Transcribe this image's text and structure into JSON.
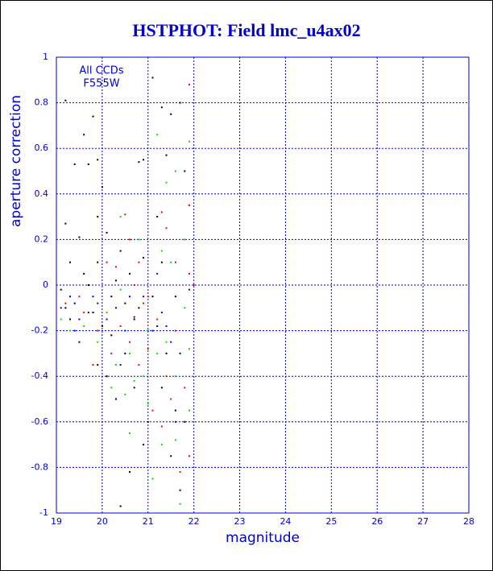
{
  "chart_data": {
    "type": "scatter",
    "title": "HSTPHOT: Field lmc_u4ax02",
    "annotations": [
      "All CCDs",
      "F555W"
    ],
    "xlabel": "magnitude",
    "ylabel": "aperture correction",
    "xlim": [
      19,
      28
    ],
    "ylim": [
      -1,
      1
    ],
    "xticks": [
      19,
      20,
      21,
      22,
      23,
      24,
      25,
      26,
      27,
      28
    ],
    "yticks": [
      -1,
      -0.8,
      -0.6,
      -0.4,
      -0.2,
      0,
      0.2,
      0.4,
      0.6,
      0.8,
      1
    ],
    "grid": true,
    "series": [
      {
        "color": "#000000",
        "x": [
          19.2,
          19.6,
          19.8,
          19.4,
          19.7,
          19.9,
          20.0,
          19.2,
          19.5,
          19.9,
          20.1,
          19.3,
          19.6,
          19.1,
          19.4,
          19.8,
          20.2,
          20.4,
          20.6,
          20.8,
          21.0,
          21.2,
          21.3,
          21.4,
          21.5,
          21.1,
          20.8,
          20.9,
          21.3,
          21.6,
          21.7,
          21.8,
          20.5,
          20.3,
          20.6,
          20.4,
          21.0,
          20.9,
          21.3,
          21.5,
          21.6,
          21.8,
          19.5,
          19.9,
          20.2,
          20.7,
          21.1,
          19.3,
          19.7,
          20.0,
          20.3,
          20.5,
          20.9,
          21.4,
          21.7,
          19.2,
          19.9,
          20.1,
          20.7,
          21.2
        ],
        "values": [
          0.81,
          0.66,
          0.74,
          0.53,
          0.53,
          0.55,
          0.43,
          0.27,
          0.21,
          0.3,
          0.23,
          0.1,
          0.05,
          -0.02,
          -0.08,
          -0.12,
          -0.05,
          0.15,
          0.05,
          -0.1,
          -0.2,
          0.3,
          0.78,
          0.57,
          0.75,
          0.91,
          0.54,
          0.55,
          0.1,
          -0.05,
          0.8,
          0.5,
          -0.3,
          -0.5,
          -0.82,
          -0.97,
          -0.6,
          -0.7,
          -0.45,
          -0.75,
          -0.55,
          -0.6,
          -0.25,
          -0.35,
          -0.22,
          -0.15,
          -0.05,
          -0.15,
          0.0,
          -0.18,
          0.02,
          -0.08,
          0.12,
          -0.3,
          -0.9,
          -0.1,
          0.1,
          -0.4,
          -0.45,
          -0.18
        ]
      },
      {
        "color": "#ff0000",
        "x": [
          20.5,
          20.6,
          20.8,
          21.3,
          21.6,
          21.9,
          21.9,
          22.0,
          19.3,
          19.6,
          19.9,
          20.2,
          20.4,
          20.6,
          20.8,
          21.0,
          21.2,
          21.4,
          21.6,
          21.8,
          21.9,
          21.7,
          21.0,
          20.7,
          20.3,
          19.8,
          19.5,
          21.1,
          21.3,
          21.5,
          21.9,
          20.9,
          20.1,
          19.2,
          21.4
        ],
        "values": [
          0.31,
          0.2,
          0.1,
          0.32,
          0.1,
          0.35,
          0.88,
          0.0,
          -0.05,
          -0.12,
          -0.2,
          -0.3,
          -0.18,
          -0.25,
          -0.35,
          -0.28,
          -0.15,
          -0.4,
          -0.2,
          -0.45,
          -0.75,
          -0.82,
          -0.05,
          0.0,
          0.08,
          -0.35,
          -0.05,
          -0.55,
          -0.62,
          -0.5,
          0.05,
          -0.08,
          0.1,
          -0.08,
          0.25
        ]
      },
      {
        "color": "#00dd00",
        "x": [
          20.4,
          20.6,
          20.7,
          20.9,
          21.2,
          21.6,
          21.9,
          21.0,
          21.2,
          21.4,
          21.6,
          21.8,
          21.9,
          21.7,
          21.3,
          21.1,
          20.6,
          20.5,
          20.3,
          20.1,
          19.9,
          19.6,
          19.3,
          19.1,
          21.5,
          21.8,
          21.3,
          20.8,
          20.2,
          21.0,
          21.6,
          21.9,
          20.4,
          21.4,
          21.7
        ],
        "values": [
          -0.02,
          -0.3,
          -0.42,
          -0.4,
          0.66,
          0.5,
          0.63,
          -0.2,
          -0.3,
          -0.25,
          -0.4,
          -0.1,
          -0.55,
          -0.96,
          -0.7,
          -0.85,
          -0.65,
          -0.48,
          -0.35,
          -0.12,
          -0.25,
          -0.18,
          -0.2,
          -0.15,
          0.1,
          0.2,
          0.15,
          0.2,
          -0.45,
          -0.52,
          -0.68,
          -0.28,
          0.3,
          0.45,
          -0.3
        ]
      },
      {
        "color": "#0000ff",
        "x": [
          19.1,
          19.3,
          19.5,
          19.7,
          19.9,
          20.1,
          20.3,
          20.5,
          20.7,
          20.9,
          21.1,
          21.3,
          21.5,
          21.7,
          21.9,
          19.4,
          20.6,
          21.2,
          21.6,
          20.4,
          19.8,
          21.4
        ],
        "values": [
          -0.1,
          -0.05,
          -0.15,
          -0.12,
          -0.08,
          -0.15,
          -0.1,
          -0.2,
          -0.14,
          -0.05,
          -0.2,
          -0.12,
          -0.25,
          -0.3,
          -0.02,
          -0.2,
          -0.05,
          0.05,
          -0.6,
          -0.35,
          -0.05,
          -0.18
        ]
      }
    ]
  }
}
